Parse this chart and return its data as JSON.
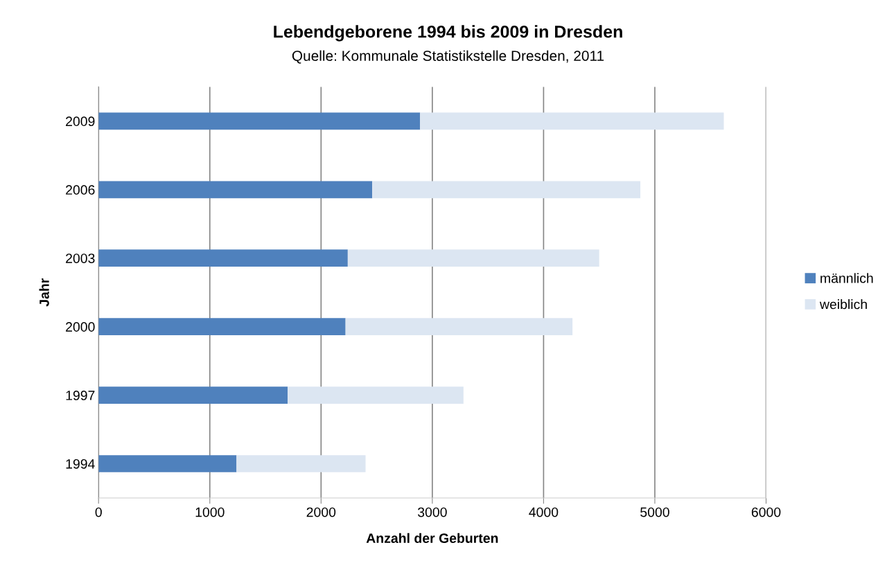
{
  "chart_data": {
    "type": "bar",
    "orientation": "horizontal",
    "stacked": true,
    "title": "Lebendgeborene 1994 bis 2009 in Dresden",
    "subtitle": "Quelle: Kommunale Statistikstelle Dresden, 2011",
    "xlabel": "Anzahl der Geburten",
    "ylabel": "Jahr",
    "categories": [
      "2009",
      "2006",
      "2003",
      "2000",
      "1997",
      "1994"
    ],
    "series": [
      {
        "name": "männlich",
        "color": "#4f81bd",
        "values": [
          2890,
          2460,
          2240,
          2220,
          1700,
          1240
        ]
      },
      {
        "name": "weiblich",
        "color": "#dce6f2",
        "values": [
          2730,
          2410,
          2260,
          2040,
          1580,
          1160
        ]
      }
    ],
    "xlim": [
      0,
      6000
    ],
    "xticks": [
      0,
      1000,
      2000,
      3000,
      4000,
      5000,
      6000
    ],
    "grid": "x",
    "legend": "right"
  }
}
